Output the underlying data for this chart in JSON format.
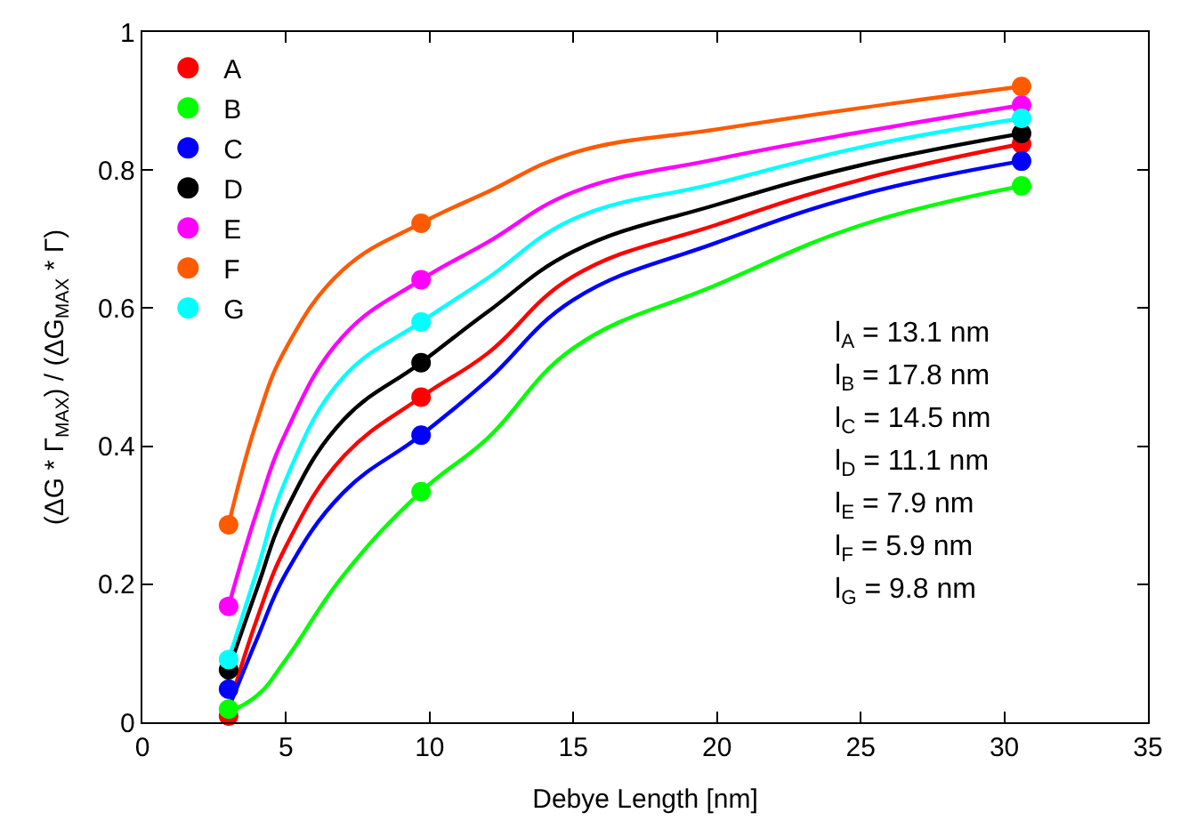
{
  "chart_data": {
    "type": "scatter",
    "xlabel": "Debye Length [nm]",
    "ylabel": "(ΔG * Γ$_{MAX}$) / (ΔG$_{MAX}$ * Γ)",
    "xlim": [
      0,
      35
    ],
    "xticks": [
      0,
      5,
      10,
      15,
      20,
      25,
      30,
      35
    ],
    "ylim": [
      0,
      1
    ],
    "yticks": [
      0,
      0.2,
      0.4,
      0.6,
      0.8,
      1
    ],
    "grid": false,
    "legend": "top left",
    "marker": "circle",
    "annotations": [
      "l$_{A}$ = 13.1 nm",
      "l$_{B}$ = 17.8 nm",
      "l$_{C}$ = 14.5 nm",
      "l$_{D}$ = 11.1 nm",
      "l$_{E}$ = 7.9 nm",
      "l$_{F}$ = 5.9 nm",
      "l$_{G}$ = 9.8 nm"
    ],
    "series": [
      {
        "type": "line",
        "marker": "none",
        "color": "#ff0000",
        "x": [
          3,
          4,
          5,
          7,
          9.7,
          12,
          15,
          20,
          25,
          30.6
        ],
        "values": [
          0.02,
          0.151,
          0.255,
          0.385,
          0.471,
          0.534,
          0.646,
          0.721,
          0.786,
          0.838
        ]
      },
      {
        "type": "line",
        "marker": "none",
        "color": "#00ff00",
        "x": [
          3,
          4,
          5,
          7,
          9.7,
          12,
          15,
          20,
          25,
          30.6
        ],
        "values": [
          0.015,
          0.039,
          0.091,
          0.213,
          0.334,
          0.411,
          0.542,
          0.634,
          0.72,
          0.777
        ]
      },
      {
        "type": "line",
        "marker": "none",
        "color": "#0000ff",
        "x": [
          3,
          4,
          5,
          7,
          9.7,
          12,
          15,
          20,
          25,
          30.6
        ],
        "values": [
          0.02,
          0.122,
          0.216,
          0.333,
          0.416,
          0.495,
          0.612,
          0.695,
          0.764,
          0.813
        ]
      },
      {
        "type": "line",
        "marker": "none",
        "color": "#000000",
        "x": [
          3,
          4,
          5,
          7,
          9.7,
          12,
          15,
          20,
          25,
          30.6
        ],
        "values": [
          0.076,
          0.195,
          0.307,
          0.438,
          0.521,
          0.594,
          0.682,
          0.75,
          0.807,
          0.853
        ]
      },
      {
        "type": "line",
        "marker": "none",
        "color": "#ff00ff",
        "x": [
          3,
          4,
          5,
          7,
          9.7,
          12,
          15,
          20,
          25,
          30.6
        ],
        "values": [
          0.168,
          0.307,
          0.42,
          0.56,
          0.641,
          0.695,
          0.768,
          0.816,
          0.855,
          0.894
        ]
      },
      {
        "type": "line",
        "marker": "none",
        "color": "#ff5a00",
        "x": [
          3,
          4,
          5,
          7,
          9.7,
          12,
          15,
          20,
          25,
          30.6
        ],
        "values": [
          0.286,
          0.438,
          0.542,
          0.656,
          0.723,
          0.768,
          0.825,
          0.859,
          0.89,
          0.921
        ]
      },
      {
        "type": "line",
        "marker": "none",
        "color": "#00ffff",
        "x": [
          3,
          4,
          5,
          7,
          9.7,
          12,
          15,
          20,
          25,
          30.6
        ],
        "values": [
          0.091,
          0.221,
          0.352,
          0.5,
          0.58,
          0.643,
          0.729,
          0.781,
          0.833,
          0.875
        ]
      },
      {
        "name": "A",
        "color": "#ff0000",
        "x": [
          3,
          9.7,
          30.6
        ],
        "values": [
          0.009,
          0.471,
          0.838
        ]
      },
      {
        "name": "B",
        "color": "#00ff00",
        "x": [
          3,
          9.7,
          30.6
        ],
        "values": [
          0.019,
          0.334,
          0.777
        ]
      },
      {
        "name": "C",
        "color": "#0000ff",
        "x": [
          3,
          9.7,
          30.6
        ],
        "values": [
          0.048,
          0.416,
          0.813
        ]
      },
      {
        "name": "D",
        "color": "#000000",
        "x": [
          3,
          9.7,
          30.6
        ],
        "values": [
          0.076,
          0.521,
          0.853
        ]
      },
      {
        "name": "E",
        "color": "#ff00ff",
        "x": [
          3,
          9.7,
          30.6
        ],
        "values": [
          0.168,
          0.641,
          0.894
        ]
      },
      {
        "name": "F",
        "color": "#ff5a00",
        "x": [
          3,
          9.7,
          30.6
        ],
        "values": [
          0.286,
          0.723,
          0.921
        ]
      },
      {
        "name": "G",
        "color": "#00ffff",
        "x": [
          3,
          9.7,
          30.6
        ],
        "values": [
          0.091,
          0.58,
          0.875
        ]
      }
    ]
  }
}
